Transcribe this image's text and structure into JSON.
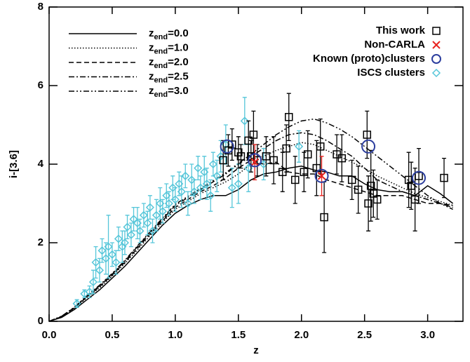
{
  "chart_data": {
    "type": "scatter",
    "xlabel": "z",
    "ylabel": "i-[3.6]",
    "xlim": [
      0,
      3.28
    ],
    "ylim": [
      0,
      8
    ],
    "xticks": [
      {
        "value": 0,
        "label": "0.0"
      },
      {
        "value": 0.5,
        "label": "0.5"
      },
      {
        "value": 1,
        "label": "1.0"
      },
      {
        "value": 1.5,
        "label": "1.5"
      },
      {
        "value": 2,
        "label": "2.0"
      },
      {
        "value": 2.5,
        "label": "2.5"
      },
      {
        "value": 3,
        "label": "3.0"
      }
    ],
    "yticks": [
      0,
      2,
      4,
      6,
      8
    ],
    "series": [
      {
        "name": "This work",
        "color": "#000000",
        "marker": "square",
        "x": [
          1.38,
          1.42,
          1.45,
          1.5,
          1.52,
          1.58,
          1.6,
          1.62,
          1.65,
          1.72,
          1.78,
          1.85,
          1.88,
          1.9,
          1.95,
          2.02,
          2.05,
          2.12,
          2.15,
          2.18,
          2.28,
          2.32,
          2.4,
          2.45,
          2.52,
          2.53,
          2.55,
          2.57,
          2.6,
          2.85,
          2.87,
          2.9,
          2.93,
          3.13
        ],
        "y": [
          4.1,
          4.35,
          4.5,
          4.3,
          4.2,
          4.6,
          4.2,
          4.75,
          4.1,
          4.2,
          4.1,
          3.8,
          4.4,
          5.2,
          3.6,
          3.8,
          4.25,
          3.9,
          4.45,
          2.65,
          4.25,
          4.15,
          3.6,
          3.35,
          4.75,
          3.0,
          3.45,
          3.25,
          3.1,
          3.6,
          3.45,
          3.1,
          3.7,
          3.65
        ],
        "errors": [
          0.5,
          0.4,
          0.4,
          0.4,
          0.3,
          0.5,
          0.4,
          0.6,
          0.4,
          0.5,
          0.6,
          0.5,
          0.6,
          0.6,
          0.6,
          0.5,
          0.6,
          0.7,
          0.7,
          0.9,
          0.5,
          0.6,
          0.5,
          0.6,
          0.6,
          0.7,
          0.9,
          0.6,
          0.5,
          0.7,
          0.6,
          0.8,
          0.7,
          0.5
        ]
      },
      {
        "name": "Non-CARLA",
        "color": "#e8231f",
        "marker": "cross",
        "x": [
          1.63,
          2.16
        ],
        "y": [
          4.05,
          3.7
        ],
        "errors": [
          0.45,
          0.5
        ]
      },
      {
        "name": "Known (proto)clusters",
        "color": "#2c3e9e",
        "marker": "circle",
        "x": [
          1.41,
          1.63,
          2.16,
          2.53,
          2.93
        ],
        "y": [
          4.45,
          4.1,
          3.7,
          4.45,
          3.65
        ]
      },
      {
        "name": "ISCS clusters",
        "color": "#56c6d9",
        "marker": "diamond",
        "x": [
          0.22,
          0.28,
          0.32,
          0.35,
          0.37,
          0.4,
          0.42,
          0.45,
          0.47,
          0.5,
          0.53,
          0.55,
          0.58,
          0.6,
          0.62,
          0.65,
          0.67,
          0.7,
          0.72,
          0.75,
          0.78,
          0.8,
          0.82,
          0.85,
          0.88,
          0.9,
          0.93,
          0.95,
          0.98,
          1.0,
          1.03,
          1.05,
          1.08,
          1.1,
          1.13,
          1.15,
          1.18,
          1.2,
          1.23,
          1.25,
          1.28,
          1.3,
          1.33,
          1.36,
          1.4,
          1.45,
          1.5,
          1.55,
          1.58,
          1.7,
          1.98
        ],
        "y": [
          0.45,
          0.7,
          0.75,
          1.0,
          1.5,
          1.3,
          1.8,
          1.6,
          1.9,
          1.7,
          1.5,
          2.1,
          1.9,
          2.0,
          2.4,
          2.2,
          2.6,
          2.5,
          2.3,
          2.7,
          2.5,
          2.9,
          2.3,
          2.7,
          3.0,
          2.8,
          3.2,
          3.0,
          3.4,
          3.1,
          3.5,
          3.3,
          3.7,
          3.0,
          3.6,
          3.3,
          3.9,
          3.4,
          3.8,
          3.5,
          3.2,
          4.0,
          3.7,
          4.2,
          4.5,
          3.4,
          3.5,
          5.1,
          3.9,
          4.0,
          4.45
        ],
        "errors": [
          0.1,
          0.1,
          0.15,
          0.3,
          0.4,
          0.3,
          0.3,
          0.4,
          0.8,
          0.3,
          0.3,
          0.3,
          0.4,
          0.3,
          0.3,
          0.3,
          0.3,
          0.4,
          0.3,
          0.3,
          0.3,
          0.3,
          0.3,
          0.4,
          0.4,
          0.3,
          0.3,
          0.3,
          0.3,
          0.3,
          0.3,
          0.4,
          0.3,
          0.3,
          0.4,
          0.3,
          0.3,
          0.3,
          0.4,
          0.4,
          0.4,
          0.3,
          0.4,
          0.4,
          0.5,
          0.5,
          0.5,
          0.6,
          0.6,
          0.4,
          0.4
        ]
      }
    ],
    "models": {
      "legend_symbol": "z",
      "legend_subscript": "end",
      "color": "#000000",
      "x": [
        0,
        0.1,
        0.2,
        0.3,
        0.4,
        0.5,
        0.6,
        0.7,
        0.8,
        0.9,
        1.0,
        1.1,
        1.2,
        1.3,
        1.4,
        1.5,
        1.6,
        1.7,
        1.8,
        1.9,
        2.0,
        2.1,
        2.2,
        2.3,
        2.4,
        2.5,
        2.6,
        2.7,
        2.8,
        2.9,
        3.0,
        3.1,
        3.2
      ],
      "series": [
        {
          "name": "=0.0",
          "style": "solid",
          "values": [
            0,
            0.1,
            0.3,
            0.55,
            0.8,
            1.1,
            1.4,
            1.75,
            2.1,
            2.45,
            2.75,
            2.95,
            3.1,
            3.2,
            3.2,
            3.35,
            3.6,
            3.75,
            3.8,
            3.9,
            3.95,
            3.85,
            3.8,
            3.7,
            3.7,
            3.5,
            3.35,
            3.3,
            3.3,
            3.2,
            3.45,
            3.25,
            3.0
          ]
        },
        {
          "name": "=1.0",
          "style": "dotted",
          "values": [
            0,
            0.12,
            0.33,
            0.6,
            0.85,
            1.15,
            1.47,
            1.82,
            2.18,
            2.52,
            2.85,
            3.05,
            3.25,
            3.4,
            3.55,
            3.75,
            4.0,
            4.2,
            4.35,
            4.45,
            4.55,
            4.5,
            4.35,
            4.2,
            4.05,
            3.9,
            3.7,
            3.55,
            3.4,
            3.25,
            3.15,
            3.05,
            2.95
          ]
        },
        {
          "name": "=2.0",
          "style": "dashed",
          "values": [
            0,
            0.12,
            0.34,
            0.62,
            0.88,
            1.18,
            1.5,
            1.86,
            2.22,
            2.56,
            2.9,
            3.1,
            3.3,
            3.45,
            3.65,
            3.9,
            4.1,
            4.0,
            4.05,
            3.8,
            3.75,
            3.75,
            3.6,
            3.5,
            3.4,
            3.3,
            3.2,
            3.2,
            3.2,
            3.1,
            3.0,
            3.0,
            2.95
          ]
        },
        {
          "name": "=2.5",
          "style": "dashdot",
          "values": [
            0,
            0.13,
            0.35,
            0.64,
            0.9,
            1.2,
            1.53,
            1.9,
            2.26,
            2.6,
            2.95,
            3.15,
            3.35,
            3.55,
            3.75,
            4.0,
            4.2,
            4.4,
            4.6,
            4.75,
            4.8,
            4.75,
            4.6,
            4.4,
            4.2,
            3.9,
            3.6,
            3.45,
            3.3,
            3.2,
            3.1,
            3.0,
            2.9
          ]
        },
        {
          "name": "=3.0",
          "style": "dashdotdot",
          "values": [
            0,
            0.13,
            0.36,
            0.65,
            0.92,
            1.22,
            1.55,
            1.92,
            2.28,
            2.63,
            2.98,
            3.18,
            3.38,
            3.58,
            3.78,
            4.02,
            4.25,
            4.5,
            4.75,
            4.95,
            5.1,
            5.15,
            5.05,
            4.9,
            4.7,
            4.45,
            4.2,
            3.95,
            3.7,
            3.45,
            3.2,
            3.0,
            2.85
          ]
        }
      ]
    }
  }
}
